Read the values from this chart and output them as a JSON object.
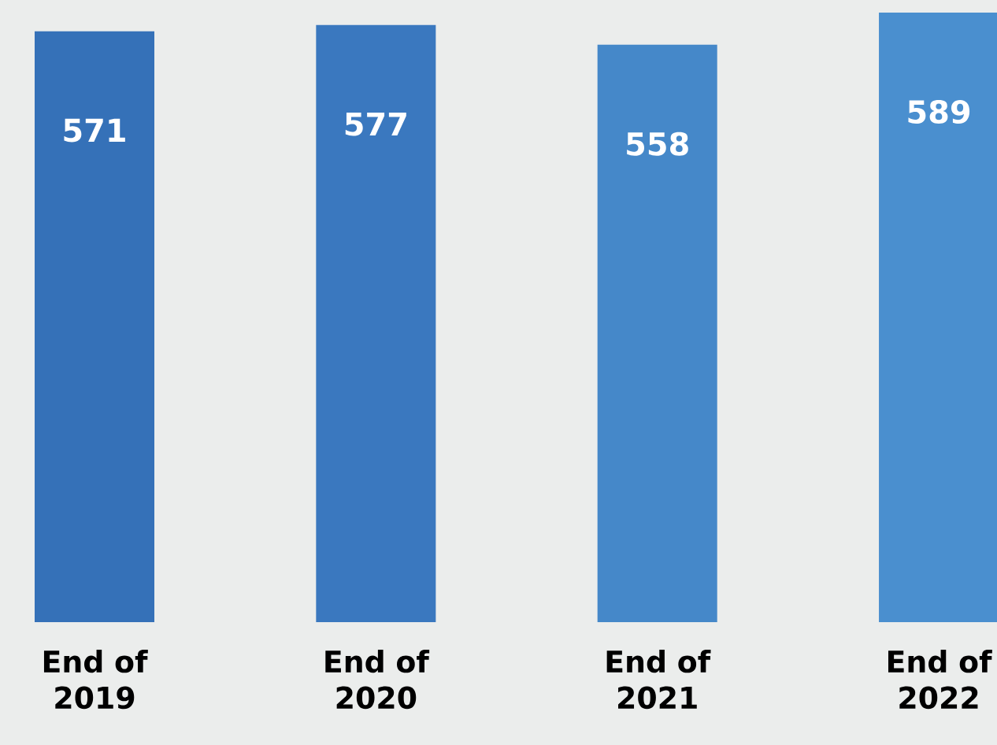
{
  "chart_data": {
    "type": "bar",
    "categories": [
      "End of 2019",
      "End of 2020",
      "End of 2021",
      "End of 2022"
    ],
    "values": [
      571,
      577,
      558,
      589
    ],
    "colors": [
      "#3571b8",
      "#3a78bf",
      "#4588c9",
      "#4a8fcf"
    ],
    "data_labels": true
  }
}
